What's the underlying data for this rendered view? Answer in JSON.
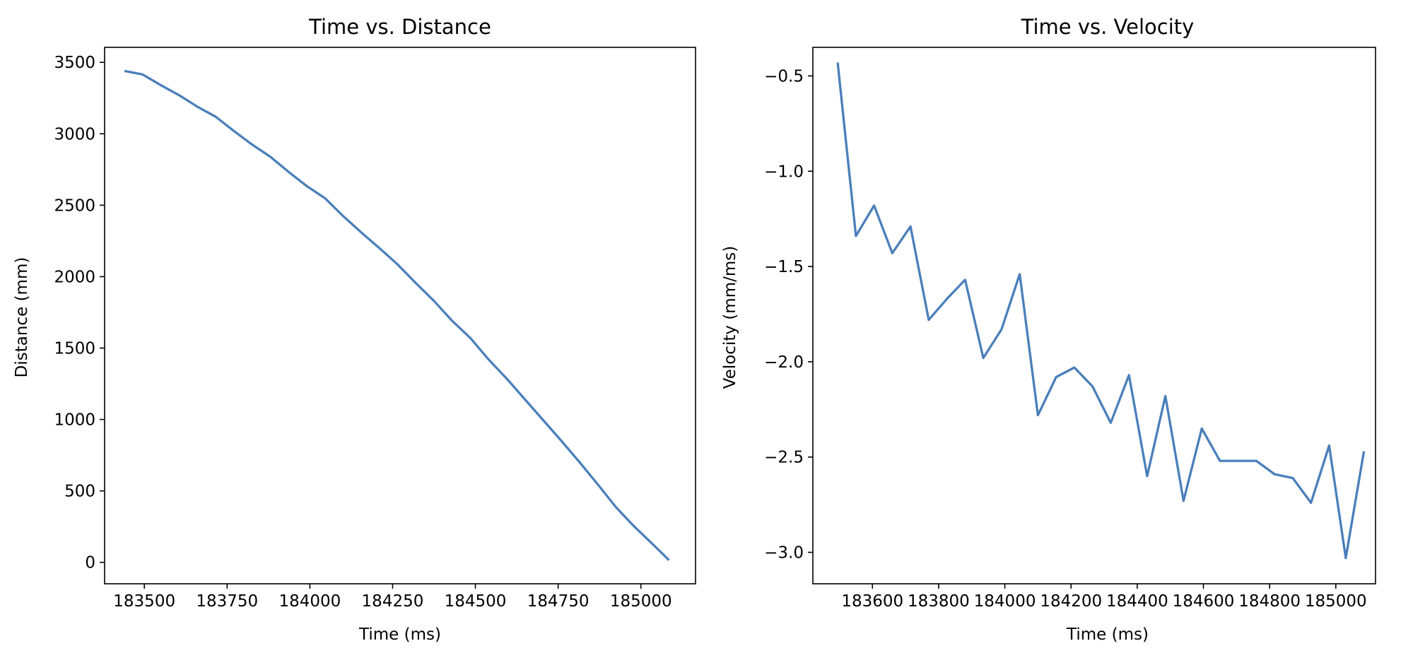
{
  "chart_data": [
    {
      "type": "line",
      "title": "Time vs. Distance",
      "xlabel": "Time (ms)",
      "ylabel": "Distance (mm)",
      "xlim": [
        183380,
        185165
      ],
      "ylim": [
        -150,
        3605
      ],
      "xticks": [
        183500,
        183750,
        184000,
        184250,
        184500,
        184750,
        185000
      ],
      "xtick_labels": [
        "183500",
        "183750",
        "184000",
        "184250",
        "184500",
        "184750",
        "185000"
      ],
      "yticks": [
        0,
        500,
        1000,
        1500,
        2000,
        2500,
        3000,
        3500
      ],
      "ytick_labels": [
        "0",
        "500",
        "1000",
        "1500",
        "2000",
        "2500",
        "3000",
        "3500"
      ],
      "grid": false,
      "series": [
        {
          "color": "#4a7fba",
          "x": [
            183440,
            183495,
            183550,
            183605,
            183660,
            183715,
            183770,
            183825,
            183880,
            183935,
            183990,
            184045,
            184100,
            184155,
            184210,
            184265,
            184320,
            184375,
            184430,
            184485,
            184540,
            184595,
            184650,
            184705,
            184760,
            184815,
            184870,
            184925,
            184980,
            185030,
            185085
          ],
          "y": [
            3440,
            3415,
            3340,
            3270,
            3190,
            3120,
            3020,
            2925,
            2840,
            2735,
            2635,
            2550,
            2425,
            2310,
            2200,
            2085,
            1955,
            1830,
            1690,
            1570,
            1420,
            1285,
            1140,
            995,
            850,
            700,
            545,
            385,
            250,
            140,
            15
          ]
        }
      ]
    },
    {
      "type": "line",
      "title": "Time vs. Velocity",
      "xlabel": "Time (ms)",
      "ylabel": "Velocity (mm/ms)",
      "xlim": [
        183420,
        185120
      ],
      "ylim": [
        -3.165,
        -0.35
      ],
      "xticks": [
        183600,
        183800,
        184000,
        184200,
        184400,
        184600,
        184800,
        185000
      ],
      "xtick_labels": [
        "183600",
        "183800",
        "184000",
        "184200",
        "184400",
        "184600",
        "184800",
        "185000"
      ],
      "yticks": [
        -0.5,
        -1.0,
        -1.5,
        -2.0,
        -2.5,
        -3.0
      ],
      "ytick_labels": [
        "−0.5",
        "−1.0",
        "−1.5",
        "−2.0",
        "−2.5",
        "−3.0"
      ],
      "grid": false,
      "series": [
        {
          "color": "#4a7fba",
          "x": [
            183495,
            183550,
            183605,
            183660,
            183715,
            183770,
            183825,
            183880,
            183935,
            183990,
            184045,
            184100,
            184155,
            184210,
            184265,
            184320,
            184375,
            184430,
            184485,
            184540,
            184595,
            184650,
            184705,
            184760,
            184815,
            184870,
            184925,
            184980,
            185030,
            185085
          ],
          "y": [
            -0.43,
            -1.34,
            -1.18,
            -1.43,
            -1.29,
            -1.78,
            -1.67,
            -1.57,
            -1.98,
            -1.83,
            -1.54,
            -2.28,
            -2.08,
            -2.03,
            -2.13,
            -2.32,
            -2.07,
            -2.6,
            -2.18,
            -2.73,
            -2.35,
            -2.52,
            -2.52,
            -2.52,
            -2.59,
            -2.61,
            -2.74,
            -2.44,
            -3.03,
            -2.47
          ]
        }
      ]
    }
  ]
}
